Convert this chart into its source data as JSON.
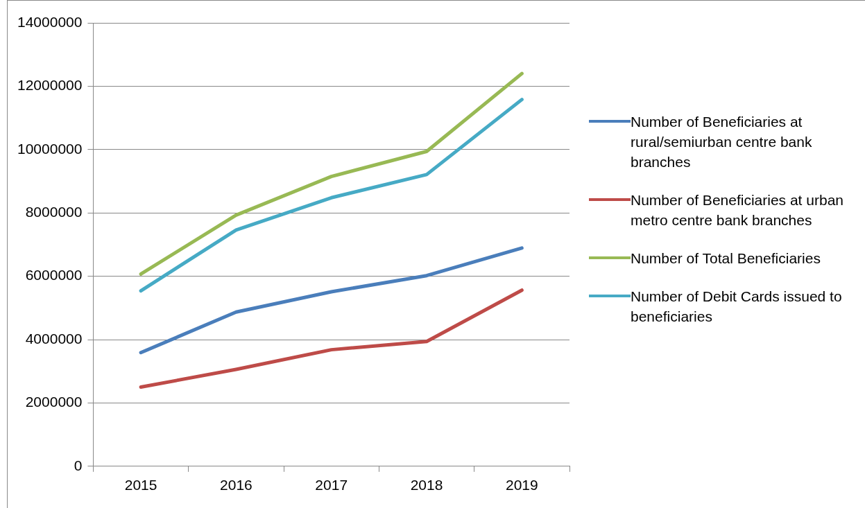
{
  "chart_data": {
    "type": "line",
    "categories": [
      "2015",
      "2016",
      "2017",
      "2018",
      "2019"
    ],
    "series": [
      {
        "name": "Number of Beneficiaries at rural/semiurban centre bank branches",
        "color": "#4a7ebb",
        "values": [
          3590000,
          4870000,
          5510000,
          6020000,
          6890000
        ]
      },
      {
        "name": "Number of Beneficiaries at urban metro centre bank branches",
        "color": "#be4b48",
        "values": [
          2500000,
          3060000,
          3680000,
          3940000,
          5560000
        ]
      },
      {
        "name": "Number of Total Beneficiaries",
        "color": "#98b954",
        "values": [
          6070000,
          7930000,
          9150000,
          9940000,
          12400000
        ]
      },
      {
        "name": "Number of Debit Cards issued to beneficiaries",
        "color": "#46aac5",
        "values": [
          5540000,
          7460000,
          8480000,
          9210000,
          11580000
        ]
      }
    ],
    "ylim": [
      0,
      14000000
    ],
    "yticks": [
      0,
      2000000,
      4000000,
      6000000,
      8000000,
      10000000,
      12000000,
      14000000
    ],
    "grid": "y",
    "legend": "right",
    "marker": "none",
    "line_style": "solid"
  }
}
